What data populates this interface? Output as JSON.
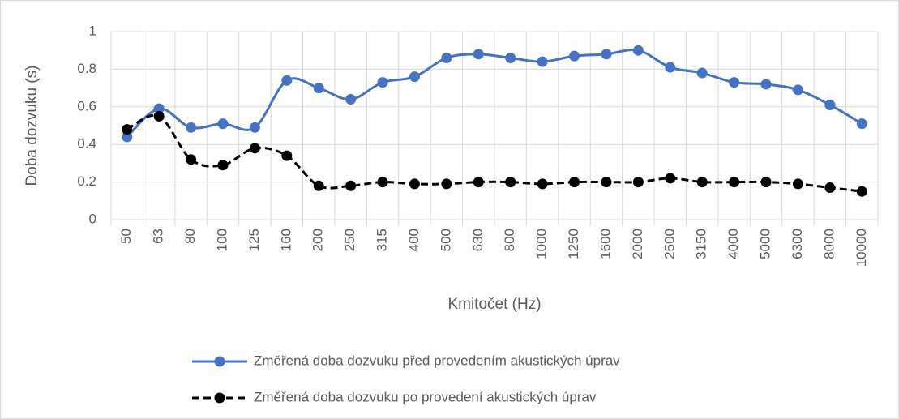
{
  "chart_data": {
    "type": "line",
    "y_label": "Doba dozvuku (s)",
    "x_label": "Kmitočet (Hz)",
    "categories": [
      "50",
      "63",
      "80",
      "100",
      "125",
      "160",
      "200",
      "250",
      "315",
      "400",
      "500",
      "630",
      "800",
      "1000",
      "1250",
      "1600",
      "2000",
      "2500",
      "3150",
      "4000",
      "5000",
      "6300",
      "8000",
      "10000"
    ],
    "series": [
      {
        "name": "Změřená doba dozvuku před provedením akustických úprav",
        "color": "#4472c4",
        "dash": false,
        "values": [
          0.44,
          0.59,
          0.49,
          0.51,
          0.49,
          0.74,
          0.7,
          0.64,
          0.73,
          0.76,
          0.86,
          0.88,
          0.86,
          0.84,
          0.87,
          0.88,
          0.9,
          0.81,
          0.78,
          0.73,
          0.72,
          0.69,
          0.61,
          0.51
        ]
      },
      {
        "name": "Změřená doba dozvuku po provedení akustických úprav",
        "color": "#000000",
        "dash": true,
        "values": [
          0.48,
          0.55,
          0.32,
          0.29,
          0.38,
          0.34,
          0.18,
          0.18,
          0.2,
          0.19,
          0.19,
          0.2,
          0.2,
          0.19,
          0.2,
          0.2,
          0.2,
          0.22,
          0.2,
          0.2,
          0.2,
          0.19,
          0.17,
          0.15
        ]
      }
    ],
    "ylim": [
      0,
      1
    ],
    "yticks": [
      0,
      0.2,
      0.4,
      0.6,
      0.8,
      1
    ],
    "grid": true,
    "legend": "bottom"
  }
}
